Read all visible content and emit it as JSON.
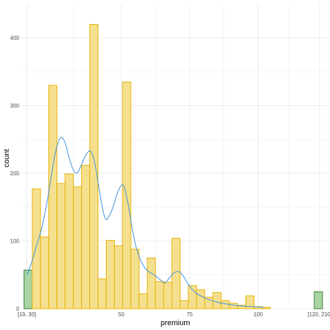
{
  "chart_data": {
    "type": "bar",
    "xlabel": "premium",
    "ylabel": "count",
    "x_ticks": [
      {
        "value": 15.5,
        "label": "[19, 30]"
      },
      {
        "value": 50,
        "label": "50"
      },
      {
        "value": 75,
        "label": "75"
      },
      {
        "value": 100,
        "label": "100"
      },
      {
        "value": 122.5,
        "label": "[120, 210]"
      }
    ],
    "y_ticks": [
      0,
      100,
      200,
      300,
      400
    ],
    "xlim": [
      13.5,
      125.5
    ],
    "ylim": [
      0,
      450
    ],
    "grid": true,
    "bins": [
      {
        "start": 14.5,
        "end": 17.5,
        "value": 57,
        "outlier": true
      },
      {
        "start": 17.5,
        "end": 20.5,
        "value": 177
      },
      {
        "start": 20.5,
        "end": 23.5,
        "value": 106
      },
      {
        "start": 23.5,
        "end": 26.5,
        "value": 330
      },
      {
        "start": 26.5,
        "end": 29.5,
        "value": 185
      },
      {
        "start": 29.5,
        "end": 32.5,
        "value": 199
      },
      {
        "start": 32.5,
        "end": 35.5,
        "value": 180
      },
      {
        "start": 35.5,
        "end": 38.5,
        "value": 212
      },
      {
        "start": 38.5,
        "end": 41.5,
        "value": 420
      },
      {
        "start": 41.5,
        "end": 44.5,
        "value": 44
      },
      {
        "start": 44.5,
        "end": 47.5,
        "value": 101
      },
      {
        "start": 47.5,
        "end": 50.5,
        "value": 93
      },
      {
        "start": 50.5,
        "end": 53.5,
        "value": 335
      },
      {
        "start": 53.5,
        "end": 56.5,
        "value": 88
      },
      {
        "start": 56.5,
        "end": 59.5,
        "value": 22
      },
      {
        "start": 59.5,
        "end": 62.5,
        "value": 75
      },
      {
        "start": 62.5,
        "end": 65.5,
        "value": 40
      },
      {
        "start": 65.5,
        "end": 68.5,
        "value": 39
      },
      {
        "start": 68.5,
        "end": 71.5,
        "value": 104
      },
      {
        "start": 71.5,
        "end": 74.5,
        "value": 12
      },
      {
        "start": 74.5,
        "end": 77.5,
        "value": 34
      },
      {
        "start": 77.5,
        "end": 80.5,
        "value": 28
      },
      {
        "start": 80.5,
        "end": 83.5,
        "value": 17
      },
      {
        "start": 83.5,
        "end": 86.5,
        "value": 24
      },
      {
        "start": 86.5,
        "end": 89.5,
        "value": 12
      },
      {
        "start": 89.5,
        "end": 92.5,
        "value": 8
      },
      {
        "start": 92.5,
        "end": 95.5,
        "value": 5
      },
      {
        "start": 95.5,
        "end": 98.5,
        "value": 19
      },
      {
        "start": 98.5,
        "end": 101.5,
        "value": 3
      },
      {
        "start": 101.5,
        "end": 104.5,
        "value": 2
      },
      {
        "start": 120.5,
        "end": 123.5,
        "value": 25,
        "outlier": true
      }
    ],
    "density_curve": [
      [
        15.5,
        50
      ],
      [
        17,
        65
      ],
      [
        19,
        92
      ],
      [
        21,
        120
      ],
      [
        23,
        160
      ],
      [
        25,
        210
      ],
      [
        26.5,
        240
      ],
      [
        28,
        253
      ],
      [
        29.5,
        245
      ],
      [
        31,
        222
      ],
      [
        32.5,
        205
      ],
      [
        33.5,
        200
      ],
      [
        34.5,
        204
      ],
      [
        36,
        218
      ],
      [
        37.5,
        230
      ],
      [
        39,
        232
      ],
      [
        40.5,
        212
      ],
      [
        42,
        175
      ],
      [
        43.5,
        142
      ],
      [
        44.5,
        132
      ],
      [
        45.5,
        136
      ],
      [
        47,
        150
      ],
      [
        48.5,
        170
      ],
      [
        50,
        182
      ],
      [
        51,
        180
      ],
      [
        52.5,
        155
      ],
      [
        54,
        118
      ],
      [
        55.5,
        90
      ],
      [
        57,
        72
      ],
      [
        58.5,
        61
      ],
      [
        60,
        55
      ],
      [
        61.5,
        51
      ],
      [
        63,
        47
      ],
      [
        64.5,
        42
      ],
      [
        66,
        38
      ],
      [
        67.5,
        45
      ],
      [
        69,
        52
      ],
      [
        70.5,
        55
      ],
      [
        72,
        52
      ],
      [
        73.5,
        43
      ],
      [
        75,
        33
      ],
      [
        76.5,
        26
      ],
      [
        78,
        21
      ],
      [
        79.5,
        18
      ],
      [
        81,
        15
      ],
      [
        82.5,
        13
      ],
      [
        84,
        11
      ],
      [
        85.5,
        9
      ],
      [
        87,
        8
      ],
      [
        88.5,
        7
      ],
      [
        90,
        6
      ],
      [
        91.5,
        5
      ],
      [
        93,
        4.5
      ],
      [
        94.5,
        4
      ],
      [
        96,
        3.5
      ],
      [
        98,
        3
      ],
      [
        100,
        2.5
      ],
      [
        102,
        2
      ]
    ],
    "colors": {
      "bar_fill": "#f5e08f",
      "bar_stroke": "#e6b000",
      "outlier_fill": "#a8d5a2",
      "outlier_stroke": "#2e7d32",
      "curve": "#3a8fdc",
      "grid": "#ebebeb",
      "tick_text": "#4d4d4d"
    }
  }
}
